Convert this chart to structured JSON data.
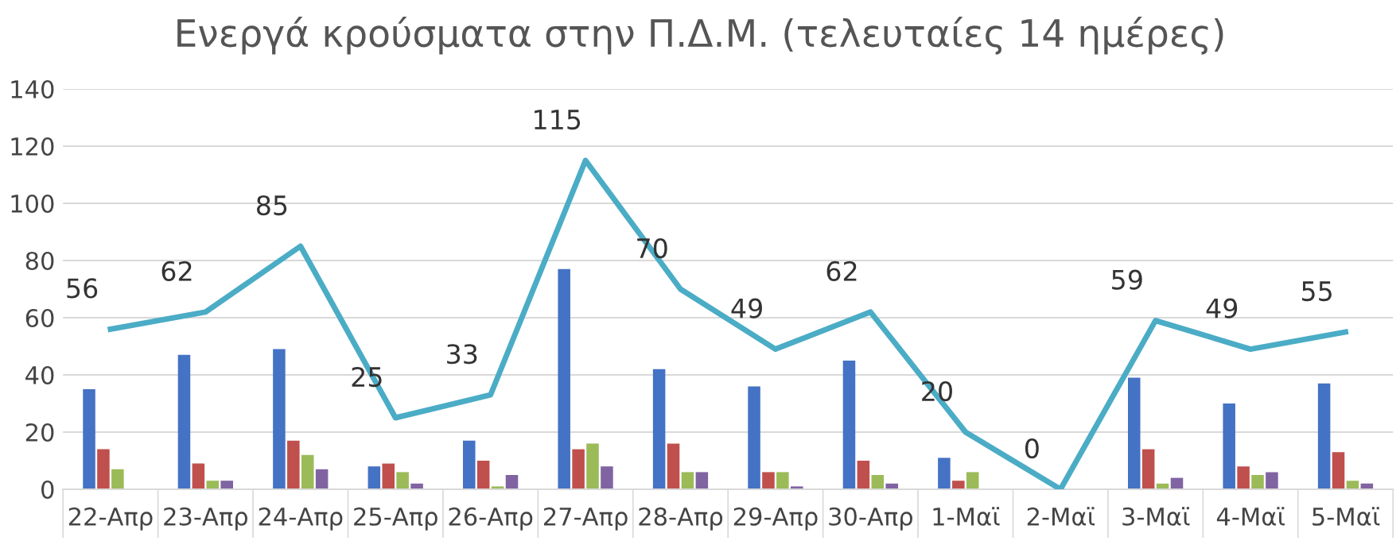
{
  "chart_data": {
    "type": "bar",
    "title": "Ενεργά κρούσματα στην Π.Δ.Μ. (τελευταίες 14 ημέρες)",
    "categories": [
      "22-Απρ",
      "23-Απρ",
      "24-Απρ",
      "25-Απρ",
      "26-Απρ",
      "27-Απρ",
      "28-Απρ",
      "29-Απρ",
      "30-Απρ",
      "1-Μαϊ",
      "2-Μαϊ",
      "3-Μαϊ",
      "4-Μαϊ",
      "5-Μαϊ"
    ],
    "series": [
      {
        "color": "#4472c4",
        "values": [
          35,
          47,
          49,
          8,
          17,
          77,
          42,
          36,
          45,
          11,
          0,
          39,
          30,
          37
        ]
      },
      {
        "color": "#c0504d",
        "values": [
          14,
          9,
          17,
          9,
          10,
          14,
          16,
          6,
          10,
          3,
          0,
          14,
          8,
          13
        ]
      },
      {
        "color": "#9bbb59",
        "values": [
          7,
          3,
          12,
          6,
          1,
          16,
          6,
          6,
          5,
          6,
          0,
          2,
          5,
          3
        ]
      },
      {
        "color": "#8064a2",
        "values": [
          0,
          3,
          7,
          2,
          5,
          8,
          6,
          1,
          2,
          0,
          0,
          4,
          6,
          2
        ]
      },
      {
        "type": "line",
        "color": "#4bacc6",
        "values": [
          56,
          62,
          85,
          25,
          33,
          115,
          70,
          49,
          62,
          20,
          0,
          59,
          49,
          55
        ],
        "value_labels": [
          "56",
          "62",
          "85",
          "25",
          "33",
          "115",
          "70",
          "49",
          "62",
          "20",
          "0",
          "59",
          "49",
          "55"
        ]
      }
    ],
    "ylim": [
      0,
      140
    ],
    "yticks": [
      0,
      20,
      40,
      60,
      80,
      100,
      120,
      140
    ],
    "grid": "y"
  }
}
